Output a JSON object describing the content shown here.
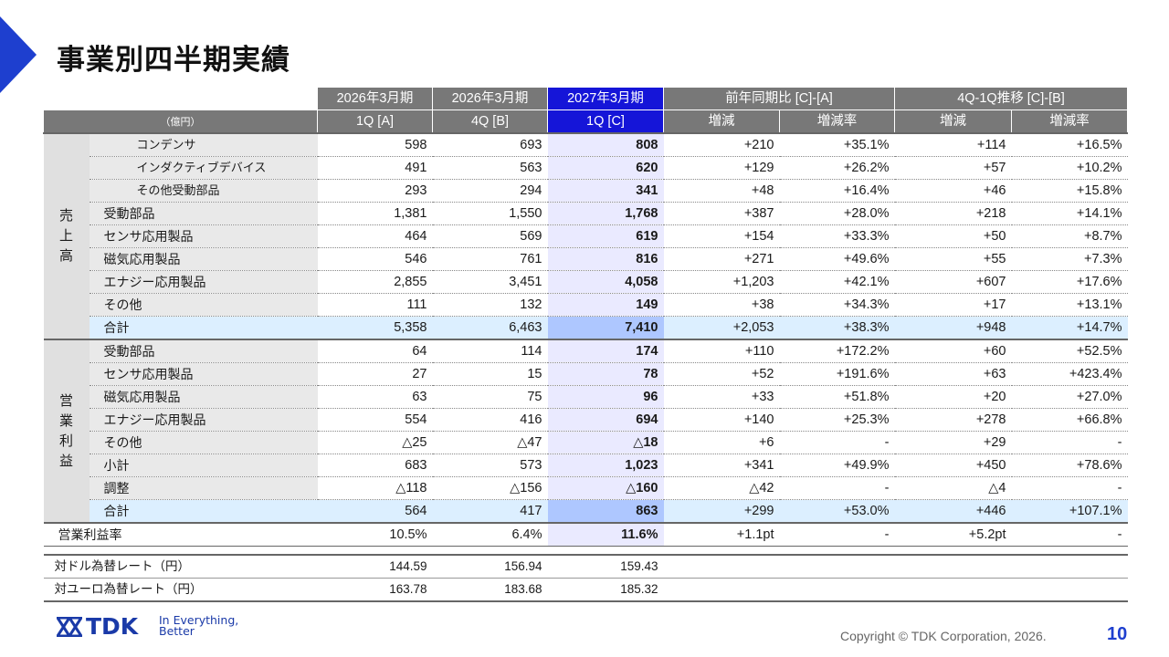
{
  "title": "事業別四半期実績",
  "unit": "（億円）",
  "header": {
    "period_cols": [
      "2026年3月期",
      "2026年3月期",
      "2027年3月期"
    ],
    "quarter_cols": [
      "1Q [A]",
      "4Q [B]",
      "1Q [C]"
    ],
    "yoy": "前年同期比 [C]-[A]",
    "qoq": "4Q-1Q推移 [C]-[B]",
    "change": "増減",
    "rate": "増減率"
  },
  "groups": {
    "sales": [
      "売",
      "上",
      "高"
    ],
    "op_income": [
      "営",
      "業",
      "利",
      "益"
    ]
  },
  "sales_rows": [
    {
      "label": "コンデンサ",
      "a": "598",
      "b": "693",
      "c": "808",
      "yoy": "+210",
      "yoy_rate": "+35.1%",
      "qoq": "+114",
      "qoq_rate": "+16.5%"
    },
    {
      "label": "インダクティブデバイス",
      "a": "491",
      "b": "563",
      "c": "620",
      "yoy": "+129",
      "yoy_rate": "+26.2%",
      "qoq": "+57",
      "qoq_rate": "+10.2%"
    },
    {
      "label": "その他受動部品",
      "a": "293",
      "b": "294",
      "c": "341",
      "yoy": "+48",
      "yoy_rate": "+16.4%",
      "qoq": "+46",
      "qoq_rate": "+15.8%"
    },
    {
      "label": "受動部品",
      "a": "1,381",
      "b": "1,550",
      "c": "1,768",
      "yoy": "+387",
      "yoy_rate": "+28.0%",
      "qoq": "+218",
      "qoq_rate": "+14.1%"
    },
    {
      "label": "センサ応用製品",
      "a": "464",
      "b": "569",
      "c": "619",
      "yoy": "+154",
      "yoy_rate": "+33.3%",
      "qoq": "+50",
      "qoq_rate": "+8.7%"
    },
    {
      "label": "磁気応用製品",
      "a": "546",
      "b": "761",
      "c": "816",
      "yoy": "+271",
      "yoy_rate": "+49.6%",
      "qoq": "+55",
      "qoq_rate": "+7.3%"
    },
    {
      "label": "エナジー応用製品",
      "a": "2,855",
      "b": "3,451",
      "c": "4,058",
      "yoy": "+1,203",
      "yoy_rate": "+42.1%",
      "qoq": "+607",
      "qoq_rate": "+17.6%"
    },
    {
      "label": "その他",
      "a": "111",
      "b": "132",
      "c": "149",
      "yoy": "+38",
      "yoy_rate": "+34.3%",
      "qoq": "+17",
      "qoq_rate": "+13.1%"
    },
    {
      "label": "合計",
      "a": "5,358",
      "b": "6,463",
      "c": "7,410",
      "yoy": "+2,053",
      "yoy_rate": "+38.3%",
      "qoq": "+948",
      "qoq_rate": "+14.7%"
    }
  ],
  "op_rows": [
    {
      "label": "受動部品",
      "a": "64",
      "b": "114",
      "c": "174",
      "yoy": "+110",
      "yoy_rate": "+172.2%",
      "qoq": "+60",
      "qoq_rate": "+52.5%"
    },
    {
      "label": "センサ応用製品",
      "a": "27",
      "b": "15",
      "c": "78",
      "yoy": "+52",
      "yoy_rate": "+191.6%",
      "qoq": "+63",
      "qoq_rate": "+423.4%"
    },
    {
      "label": "磁気応用製品",
      "a": "63",
      "b": "75",
      "c": "96",
      "yoy": "+33",
      "yoy_rate": "+51.8%",
      "qoq": "+20",
      "qoq_rate": "+27.0%"
    },
    {
      "label": "エナジー応用製品",
      "a": "554",
      "b": "416",
      "c": "694",
      "yoy": "+140",
      "yoy_rate": "+25.3%",
      "qoq": "+278",
      "qoq_rate": "+66.8%"
    },
    {
      "label": "その他",
      "a": "△25",
      "b": "△47",
      "c": "△18",
      "yoy": "+6",
      "yoy_rate": "-",
      "qoq": "+29",
      "qoq_rate": "-"
    },
    {
      "label": "小計",
      "a": "683",
      "b": "573",
      "c": "1,023",
      "yoy": "+341",
      "yoy_rate": "+49.9%",
      "qoq": "+450",
      "qoq_rate": "+78.6%"
    },
    {
      "label": "調整",
      "a": "△118",
      "b": "△156",
      "c": "△160",
      "yoy": "△42",
      "yoy_rate": "-",
      "qoq": "△4",
      "qoq_rate": "-"
    },
    {
      "label": "合計",
      "a": "564",
      "b": "417",
      "c": "863",
      "yoy": "+299",
      "yoy_rate": "+53.0%",
      "qoq": "+446",
      "qoq_rate": "+107.1%"
    }
  ],
  "ratio_row": {
    "label": "営業利益率",
    "a": "10.5%",
    "b": "6.4%",
    "c": "11.6%",
    "yoy": "+1.1pt",
    "yoy_rate": "-",
    "qoq": "+5.2pt",
    "qoq_rate": "-"
  },
  "fx_rows": [
    {
      "label": "対ドル為替レート（円）",
      "a": "144.59",
      "b": "156.94",
      "c": "159.43"
    },
    {
      "label": "対ユーロ為替レート（円）",
      "a": "163.78",
      "b": "183.68",
      "c": "185.32"
    }
  ],
  "logo": {
    "brand": "TDK",
    "tagline_1": "In Everything,",
    "tagline_2": "Better"
  },
  "footer": {
    "copyright": "Copyright © TDK Corporation, 2026.",
    "page": "10"
  },
  "colors": {
    "accent": "#1e3fcf",
    "header_gray": "#787878",
    "highlight_header": "#1515d8",
    "highlight_col": "#eaeaff",
    "total_row": "#dcefff"
  }
}
